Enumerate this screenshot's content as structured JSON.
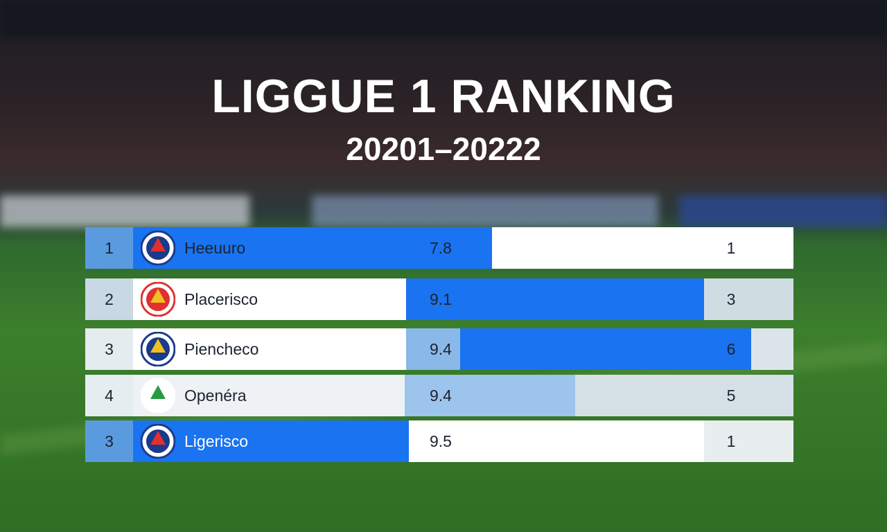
{
  "header": {
    "title": "LIGGUE 1 RANKING",
    "subtitle": "20201–20222"
  },
  "table": {
    "rows": [
      [
        "1",
        "Heeuuro",
        "7.8",
        "1"
      ],
      [
        "2",
        "Placerisco",
        "9.1",
        "3"
      ],
      [
        "3",
        "Piencheco",
        "9.4",
        "6"
      ],
      [
        "4",
        "Openéra",
        "9.4",
        "5"
      ],
      [
        "3",
        "Ligerisco",
        "9.5",
        "1"
      ]
    ]
  }
}
